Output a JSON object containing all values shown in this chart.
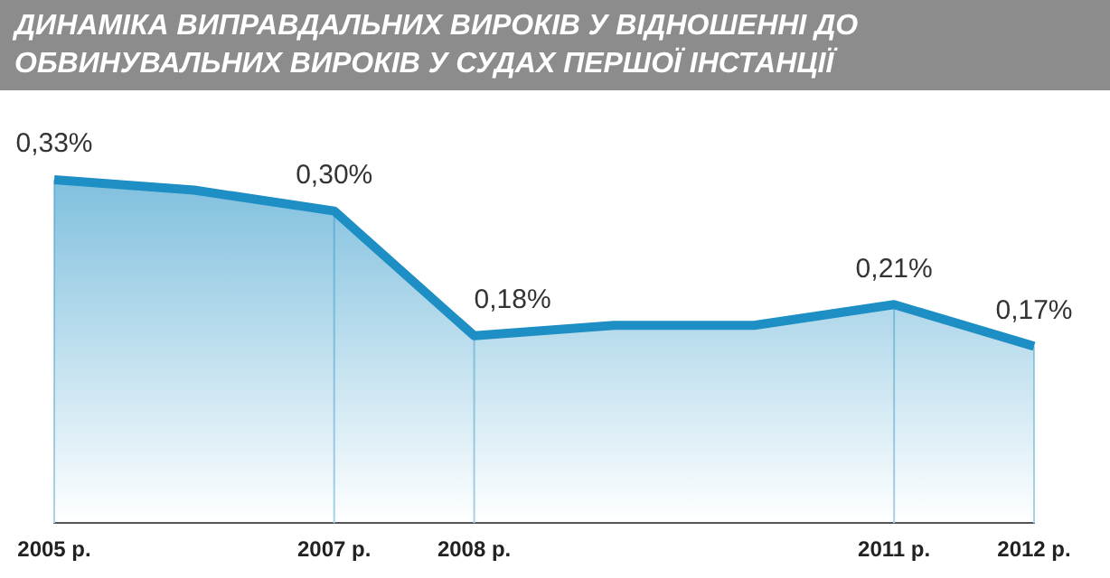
{
  "chart_data": {
    "type": "area",
    "title": "ДИНАМІКА ВИПРАВДАЛЬНИХ ВИРОКІВ У ВІДНОШЕННІ ДО ОБВИНУВАЛЬНИХ ВИРОКІВ У СУДАХ ПЕРШОЇ ІНСТАНЦІЇ",
    "categories": [
      "2005 р.",
      null,
      "2007 р.",
      "2008 р.",
      null,
      null,
      "2011 р.",
      "2012 р."
    ],
    "series": [
      {
        "color": "#1e8fc4",
        "values": [
          0.33,
          0.32,
          0.3,
          0.18,
          0.19,
          0.19,
          0.21,
          0.17
        ],
        "value_labels": [
          "0,33%",
          null,
          "0,30%",
          "0,18%",
          null,
          null,
          "0,21%",
          "0,17%"
        ]
      }
    ],
    "ref_lines": [
      {
        "axis": "x",
        "value": "2005 р.",
        "color": "#a8d2e6"
      },
      {
        "axis": "x",
        "value": "2007 р.",
        "color": "#a8d2e6"
      },
      {
        "axis": "x",
        "value": "2008 р.",
        "color": "#a8d2e6"
      },
      {
        "axis": "x",
        "value": "2011 р.",
        "color": "#a8d2e6"
      },
      {
        "axis": "x",
        "value": "2012 р.",
        "color": "#a8d2e6"
      }
    ],
    "grid": false,
    "legend": false,
    "tick_labels": "x",
    "marker": "none"
  }
}
